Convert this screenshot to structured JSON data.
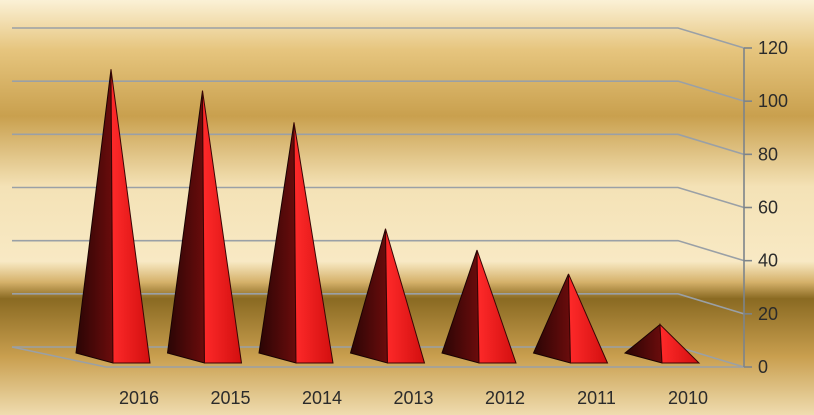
{
  "chart_data": {
    "type": "bar",
    "categories": [
      "2016",
      "2015",
      "2014",
      "2013",
      "2012",
      "2011",
      "2010"
    ],
    "values": [
      112,
      104,
      92,
      52,
      44,
      35,
      16
    ],
    "ylim": [
      0,
      120
    ],
    "yticks": [
      0,
      20,
      40,
      60,
      80,
      100,
      120
    ],
    "grid": true,
    "colors": {
      "pyramid_dark": "#4a0a0a",
      "pyramid_mid": "#7a0f0f",
      "pyramid_light": "#e01a1a",
      "gridline": "#9aa0a6",
      "background_light": "#f7e7bf",
      "background_dark": "#a07a2a"
    }
  }
}
